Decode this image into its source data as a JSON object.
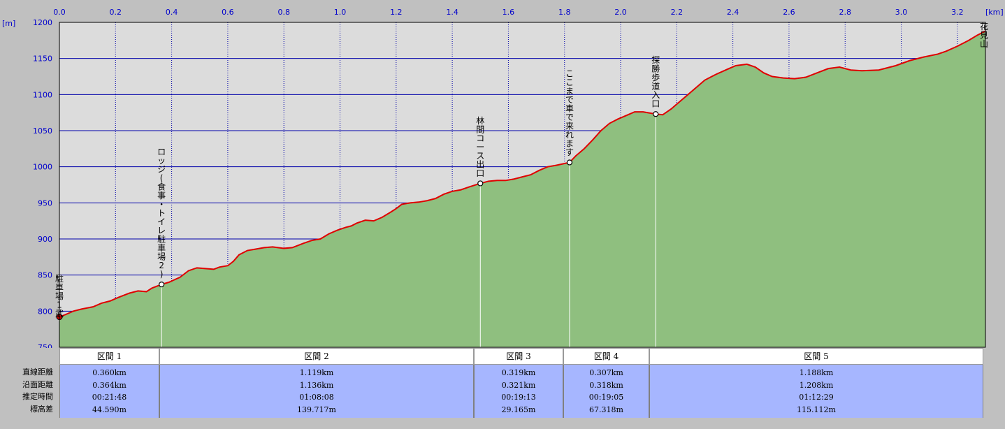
{
  "chart_data": {
    "type": "area",
    "x_unit": "[km]",
    "y_unit": "[m]",
    "xlim": [
      0,
      3.3
    ],
    "ylim": [
      750,
      1200
    ],
    "x_ticks": [
      0.0,
      0.2,
      0.4,
      0.6,
      0.8,
      1.0,
      1.2,
      1.4,
      1.6,
      1.8,
      2.0,
      2.2,
      2.4,
      2.6,
      2.8,
      3.0,
      3.2
    ],
    "x_tick_labels": [
      "0.0",
      "0.2",
      "0.4",
      "0.6",
      "0.8",
      "1.0",
      "1.2",
      "1.4",
      "1.6",
      "1.8",
      "2.0",
      "2.2",
      "2.4",
      "2.6",
      "2.8",
      "3.0",
      "3.2"
    ],
    "y_ticks": [
      750,
      800,
      850,
      900,
      950,
      1000,
      1050,
      1100,
      1150,
      1200
    ],
    "y_tick_labels": [
      "750",
      "800",
      "850",
      "900",
      "950",
      "1000",
      "1050",
      "1100",
      "1150",
      "1200"
    ],
    "grid": true,
    "colors": {
      "plot_bg": "#dcdcdc",
      "fill": "#8fbf7f",
      "line": "#e00000",
      "grid": "#0000aa",
      "table": "#a6b6ff"
    },
    "profile": [
      [
        0.0,
        792
      ],
      [
        0.02,
        795
      ],
      [
        0.05,
        800
      ],
      [
        0.08,
        803
      ],
      [
        0.12,
        806
      ],
      [
        0.15,
        811
      ],
      [
        0.18,
        814
      ],
      [
        0.21,
        819
      ],
      [
        0.25,
        825
      ],
      [
        0.28,
        828
      ],
      [
        0.31,
        827
      ],
      [
        0.33,
        832
      ],
      [
        0.364,
        837
      ],
      [
        0.39,
        840
      ],
      [
        0.43,
        847
      ],
      [
        0.46,
        856
      ],
      [
        0.49,
        860
      ],
      [
        0.52,
        859
      ],
      [
        0.55,
        858
      ],
      [
        0.57,
        861
      ],
      [
        0.6,
        863
      ],
      [
        0.62,
        869
      ],
      [
        0.64,
        878
      ],
      [
        0.67,
        884
      ],
      [
        0.7,
        886
      ],
      [
        0.73,
        888
      ],
      [
        0.76,
        889
      ],
      [
        0.8,
        887
      ],
      [
        0.83,
        888
      ],
      [
        0.87,
        894
      ],
      [
        0.9,
        898
      ],
      [
        0.93,
        900
      ],
      [
        0.96,
        907
      ],
      [
        0.99,
        912
      ],
      [
        1.02,
        916
      ],
      [
        1.04,
        918
      ],
      [
        1.06,
        922
      ],
      [
        1.09,
        926
      ],
      [
        1.12,
        925
      ],
      [
        1.15,
        930
      ],
      [
        1.18,
        937
      ],
      [
        1.2,
        942
      ],
      [
        1.22,
        948
      ],
      [
        1.25,
        950
      ],
      [
        1.28,
        951
      ],
      [
        1.31,
        953
      ],
      [
        1.34,
        956
      ],
      [
        1.37,
        962
      ],
      [
        1.4,
        966
      ],
      [
        1.43,
        968
      ],
      [
        1.46,
        972
      ],
      [
        1.5,
        977
      ],
      [
        1.53,
        980
      ],
      [
        1.56,
        981
      ],
      [
        1.59,
        981
      ],
      [
        1.62,
        983
      ],
      [
        1.65,
        986
      ],
      [
        1.68,
        989
      ],
      [
        1.71,
        995
      ],
      [
        1.74,
        1000
      ],
      [
        1.77,
        1002
      ],
      [
        1.818,
        1006
      ],
      [
        1.84,
        1015
      ],
      [
        1.87,
        1025
      ],
      [
        1.9,
        1037
      ],
      [
        1.93,
        1050
      ],
      [
        1.96,
        1060
      ],
      [
        1.99,
        1066
      ],
      [
        2.02,
        1071
      ],
      [
        2.05,
        1076
      ],
      [
        2.08,
        1076
      ],
      [
        2.125,
        1073
      ],
      [
        2.15,
        1072
      ],
      [
        2.18,
        1080
      ],
      [
        2.21,
        1090
      ],
      [
        2.24,
        1100
      ],
      [
        2.27,
        1110
      ],
      [
        2.3,
        1120
      ],
      [
        2.34,
        1128
      ],
      [
        2.38,
        1135
      ],
      [
        2.41,
        1140
      ],
      [
        2.45,
        1142
      ],
      [
        2.48,
        1138
      ],
      [
        2.51,
        1130
      ],
      [
        2.54,
        1125
      ],
      [
        2.58,
        1123
      ],
      [
        2.62,
        1122
      ],
      [
        2.66,
        1124
      ],
      [
        2.7,
        1130
      ],
      [
        2.74,
        1136
      ],
      [
        2.78,
        1138
      ],
      [
        2.82,
        1134
      ],
      [
        2.86,
        1133
      ],
      [
        2.92,
        1134
      ],
      [
        2.98,
        1140
      ],
      [
        3.03,
        1147
      ],
      [
        3.08,
        1152
      ],
      [
        3.13,
        1156
      ],
      [
        3.16,
        1160
      ],
      [
        3.2,
        1167
      ],
      [
        3.24,
        1175
      ],
      [
        3.27,
        1182
      ],
      [
        3.3,
        1188
      ]
    ],
    "waypoints": [
      {
        "x": 0.0,
        "y": 792,
        "label": "駐車場1武"
      },
      {
        "x": 0.364,
        "y": 837,
        "label": "ロッジ(食事・トイレ駐車場2)"
      },
      {
        "x": 1.5,
        "y": 977,
        "label": "林間コース出口"
      },
      {
        "x": 1.818,
        "y": 1006,
        "label": "ここまで車で来れます"
      },
      {
        "x": 2.125,
        "y": 1073,
        "label": "探勝歩道入口"
      },
      {
        "x": 3.3,
        "y": 1188,
        "label": "花見山"
      }
    ]
  },
  "table": {
    "row_labels": [
      "直線距離",
      "沿面距離",
      "推定時間",
      "標高差"
    ],
    "sections": [
      {
        "name": "区間 1",
        "values": [
          "0.360km",
          "0.364km",
          "00:21:48",
          "44.590m"
        ]
      },
      {
        "name": "区間 2",
        "values": [
          "1.119km",
          "1.136km",
          "01:08:08",
          "139.717m"
        ]
      },
      {
        "name": "区間 3",
        "values": [
          "0.319km",
          "0.321km",
          "00:19:13",
          "29.165m"
        ]
      },
      {
        "name": "区間 4",
        "values": [
          "0.307km",
          "0.318km",
          "00:19:05",
          "67.318m"
        ]
      },
      {
        "name": "区間 5",
        "values": [
          "1.188km",
          "1.208km",
          "01:12:29",
          "115.112m"
        ]
      }
    ]
  }
}
